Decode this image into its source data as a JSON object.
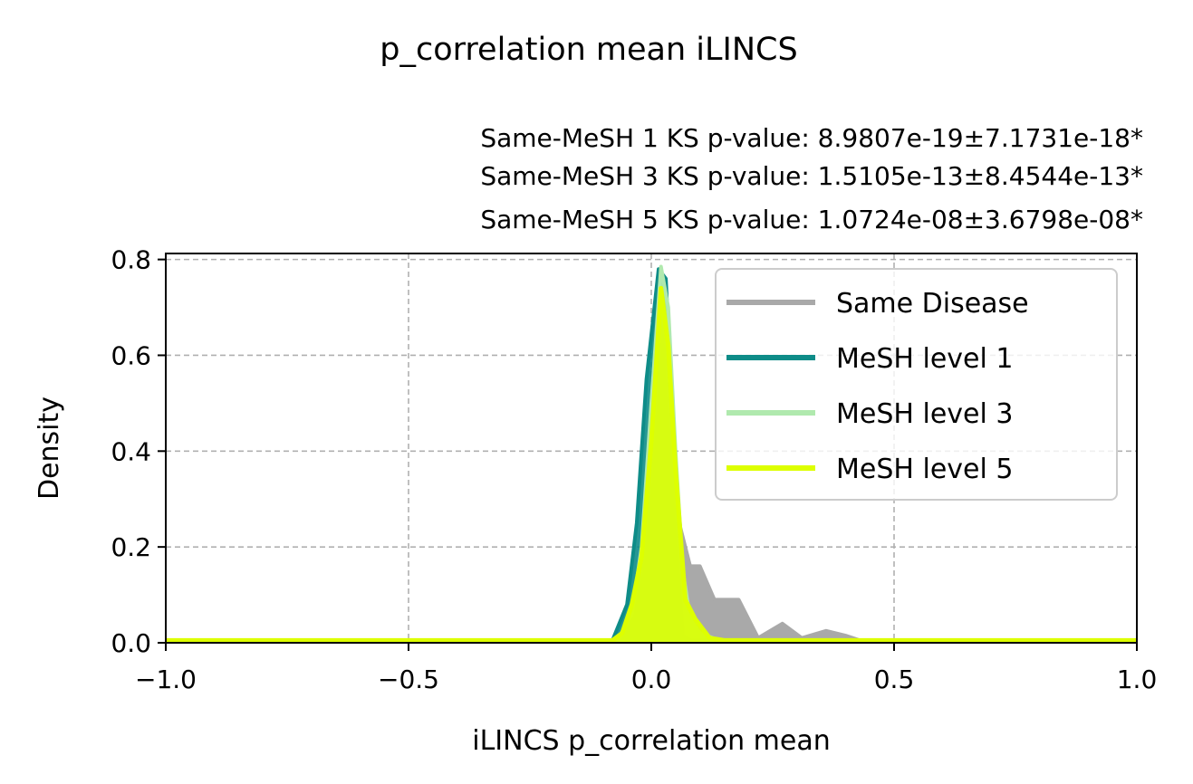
{
  "chart_data": {
    "type": "area",
    "title": "p_correlation mean iLINCS",
    "subtitle_lines": [
      "Same-MeSH 1 KS p-value: 8.9807e-19±7.1731e-18*",
      "Same-MeSH 3 KS p-value: 1.5105e-13±8.4544e-13*",
      "Same-MeSH 5 KS p-value: 1.0724e-08±3.6798e-08*"
    ],
    "xlabel": "iLINCS p_correlation mean",
    "ylabel": "Density",
    "xlim": [
      -1.0,
      1.0
    ],
    "ylim": [
      0.0,
      0.8125
    ],
    "xticks": [
      -1.0,
      -0.5,
      0.0,
      0.5,
      1.0
    ],
    "xtick_labels": [
      "−1.0",
      "−0.5",
      "0.0",
      "0.5",
      "1.0"
    ],
    "yticks": [
      0.0,
      0.2,
      0.4,
      0.6,
      0.8
    ],
    "ytick_labels": [
      "0.0",
      "0.2",
      "0.4",
      "0.6",
      "0.8"
    ],
    "grid": true,
    "legend_position": "top-right",
    "series": [
      {
        "name": "Same Disease",
        "color": "#a9a9a9",
        "points": [
          [
            -1.0,
            0.005
          ],
          [
            -0.09,
            0.005
          ],
          [
            -0.03,
            0.005
          ],
          [
            -0.01,
            0.02
          ],
          [
            0.0,
            0.1
          ],
          [
            0.01,
            0.35
          ],
          [
            0.025,
            0.56
          ],
          [
            0.04,
            0.4
          ],
          [
            0.06,
            0.24
          ],
          [
            0.08,
            0.16
          ],
          [
            0.1,
            0.16
          ],
          [
            0.13,
            0.09
          ],
          [
            0.18,
            0.09
          ],
          [
            0.22,
            0.01
          ],
          [
            0.27,
            0.04
          ],
          [
            0.31,
            0.01
          ],
          [
            0.36,
            0.025
          ],
          [
            0.4,
            0.015
          ],
          [
            0.43,
            0.005
          ],
          [
            1.0,
            0.005
          ]
        ]
      },
      {
        "name": "MeSH level 1",
        "color": "#0e8c88",
        "points": [
          [
            -1.0,
            0.005
          ],
          [
            -0.08,
            0.005
          ],
          [
            -0.05,
            0.08
          ],
          [
            -0.03,
            0.25
          ],
          [
            -0.01,
            0.55
          ],
          [
            0.015,
            0.78
          ],
          [
            0.03,
            0.76
          ],
          [
            0.045,
            0.45
          ],
          [
            0.055,
            0.15
          ],
          [
            0.065,
            0.015
          ],
          [
            0.08,
            0.005
          ],
          [
            1.0,
            0.005
          ]
        ]
      },
      {
        "name": "MeSH level 3",
        "color": "#b0e9ae",
        "points": [
          [
            -1.0,
            0.005
          ],
          [
            -0.07,
            0.005
          ],
          [
            -0.04,
            0.06
          ],
          [
            -0.02,
            0.2
          ],
          [
            0.0,
            0.5
          ],
          [
            0.02,
            0.785
          ],
          [
            0.035,
            0.7
          ],
          [
            0.05,
            0.4
          ],
          [
            0.065,
            0.15
          ],
          [
            0.08,
            0.05
          ],
          [
            0.1,
            0.02
          ],
          [
            0.14,
            0.005
          ],
          [
            1.0,
            0.005
          ]
        ]
      },
      {
        "name": "MeSH level 5",
        "color": "#ddff00",
        "points": [
          [
            -1.0,
            0.005
          ],
          [
            -0.08,
            0.005
          ],
          [
            -0.06,
            0.02
          ],
          [
            -0.04,
            0.08
          ],
          [
            -0.02,
            0.18
          ],
          [
            0.0,
            0.42
          ],
          [
            0.02,
            0.74
          ],
          [
            0.035,
            0.62
          ],
          [
            0.05,
            0.36
          ],
          [
            0.07,
            0.09
          ],
          [
            0.09,
            0.05
          ],
          [
            0.12,
            0.01
          ],
          [
            0.15,
            0.005
          ],
          [
            1.0,
            0.005
          ]
        ]
      }
    ]
  }
}
